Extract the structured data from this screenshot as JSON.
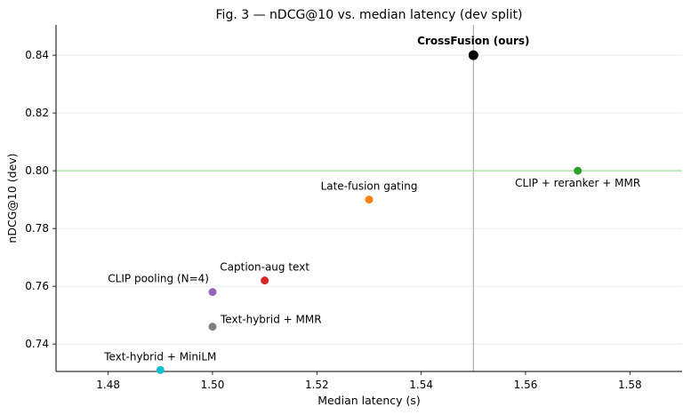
{
  "chart_data": {
    "type": "scatter",
    "title": "Fig. 3 — nDCG@10 vs. median latency (dev split)",
    "xlabel": "Median latency (s)",
    "ylabel": "nDCG@10 (dev)",
    "xlim": [
      1.47,
      1.59
    ],
    "ylim": [
      0.7305,
      0.8505
    ],
    "xticks": [
      "1.48",
      "1.50",
      "1.52",
      "1.54",
      "1.56",
      "1.58"
    ],
    "yticks": [
      "0.74",
      "0.76",
      "0.78",
      "0.80",
      "0.82",
      "0.84"
    ],
    "grid": "horizontal",
    "reference_lines": [
      {
        "orientation": "vertical",
        "value": 1.55,
        "color": "#b0b0b0"
      },
      {
        "orientation": "horizontal",
        "value": 0.8,
        "color": "#a6d8a0"
      }
    ],
    "points": [
      {
        "label": "CrossFusion (ours)",
        "x": 1.55,
        "y": 0.84,
        "color": "#000000",
        "highlight": true,
        "label_position": "above"
      },
      {
        "label": "CLIP + reranker + MMR",
        "x": 1.57,
        "y": 0.8,
        "color": "#2ca02c",
        "highlight": false,
        "label_position": "below"
      },
      {
        "label": "Late-fusion gating",
        "x": 1.53,
        "y": 0.79,
        "color": "#ff7f0e",
        "highlight": false,
        "label_position": "above"
      },
      {
        "label": "Caption-aug text",
        "x": 1.51,
        "y": 0.762,
        "color": "#d62728",
        "highlight": false,
        "label_position": "above"
      },
      {
        "label": "CLIP pooling (N=4)",
        "x": 1.5,
        "y": 0.758,
        "color": "#9467bd",
        "highlight": false,
        "label_position": "above-left"
      },
      {
        "label": "Text-hybrid + MMR",
        "x": 1.5,
        "y": 0.746,
        "color": "#7f7f7f",
        "highlight": false,
        "label_position": "above-right"
      },
      {
        "label": "Text-hybrid + MiniLM",
        "x": 1.49,
        "y": 0.731,
        "color": "#17becf",
        "highlight": false,
        "label_position": "above"
      }
    ]
  }
}
